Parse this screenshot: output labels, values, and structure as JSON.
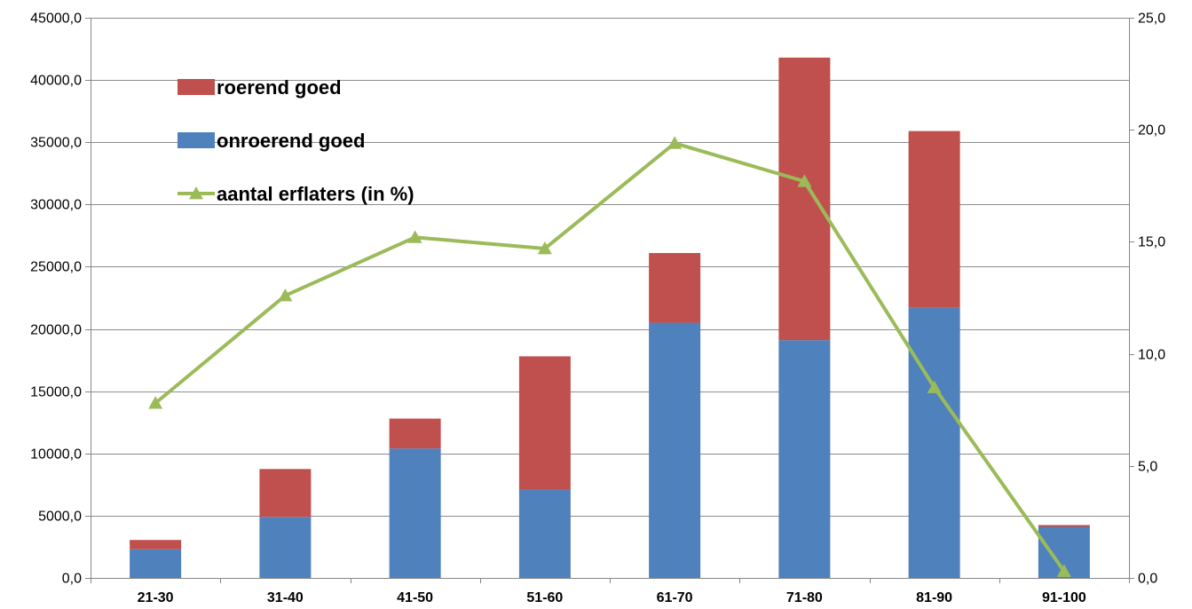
{
  "chart_data": {
    "type": "bar",
    "stacked": true,
    "categories": [
      "21-30",
      "31-40",
      "41-50",
      "51-60",
      "61-70",
      "71-80",
      "81-90",
      "91-100"
    ],
    "series": [
      {
        "name": "onroerend goed",
        "kind": "bar",
        "axis": "left",
        "color": "#4f81bd",
        "values": [
          2300,
          4900,
          10400,
          7100,
          20500,
          19100,
          21700,
          4100
        ]
      },
      {
        "name": "roerend goed",
        "kind": "bar",
        "axis": "left",
        "color": "#c0504d",
        "values": [
          750,
          3850,
          2400,
          10700,
          5600,
          22700,
          14200,
          150
        ]
      },
      {
        "name": "aantal erflaters (in %)",
        "kind": "line",
        "marker": "triangle",
        "axis": "right",
        "color": "#9bbb59",
        "values": [
          7.8,
          12.6,
          15.2,
          14.7,
          19.4,
          17.7,
          8.5,
          0.3
        ]
      }
    ],
    "left_axis": {
      "ylim": [
        0,
        45000
      ],
      "ticks": [
        "0,0",
        "5000,0",
        "10000,0",
        "15000,0",
        "20000,0",
        "25000,0",
        "30000,0",
        "35000,0",
        "40000,0",
        "45000,0"
      ]
    },
    "right_axis": {
      "ylim": [
        0,
        25
      ],
      "ticks": [
        "0,0",
        "5,0",
        "10,0",
        "15,0",
        "20,0",
        "25,0"
      ]
    },
    "grid": true,
    "legend_position": "top-left",
    "legend": [
      "roerend goed",
      "onroerend goed",
      "aantal erflaters (in %)"
    ]
  }
}
